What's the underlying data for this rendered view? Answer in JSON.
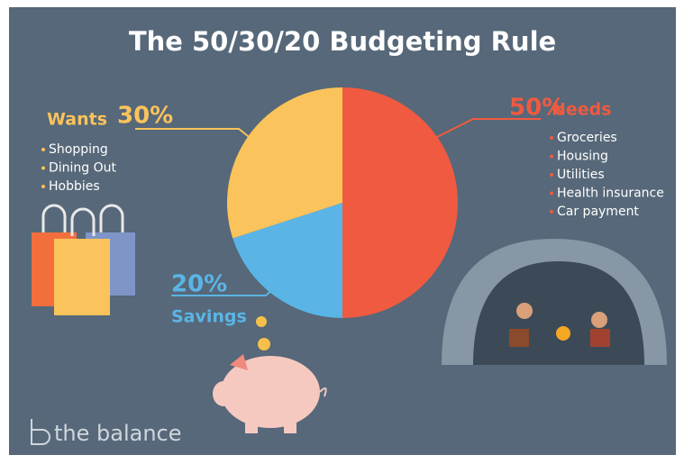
{
  "chart_data": {
    "type": "pie",
    "title": "The 50/30/20 Budgeting Rule",
    "categories": [
      "Needs",
      "Savings",
      "Wants"
    ],
    "values": [
      50,
      20,
      30
    ],
    "value_labels": [
      "50%",
      "20%",
      "30%"
    ],
    "colors": [
      "#f05a40",
      "#5ab5e6",
      "#fbc35b"
    ],
    "items": [
      [
        "Groceries",
        "Housing",
        "Utilities",
        "Health insurance",
        "Car payment"
      ],
      [],
      [
        "Shopping",
        "Dining Out",
        "Hobbies"
      ]
    ]
  },
  "brand": "the balance"
}
